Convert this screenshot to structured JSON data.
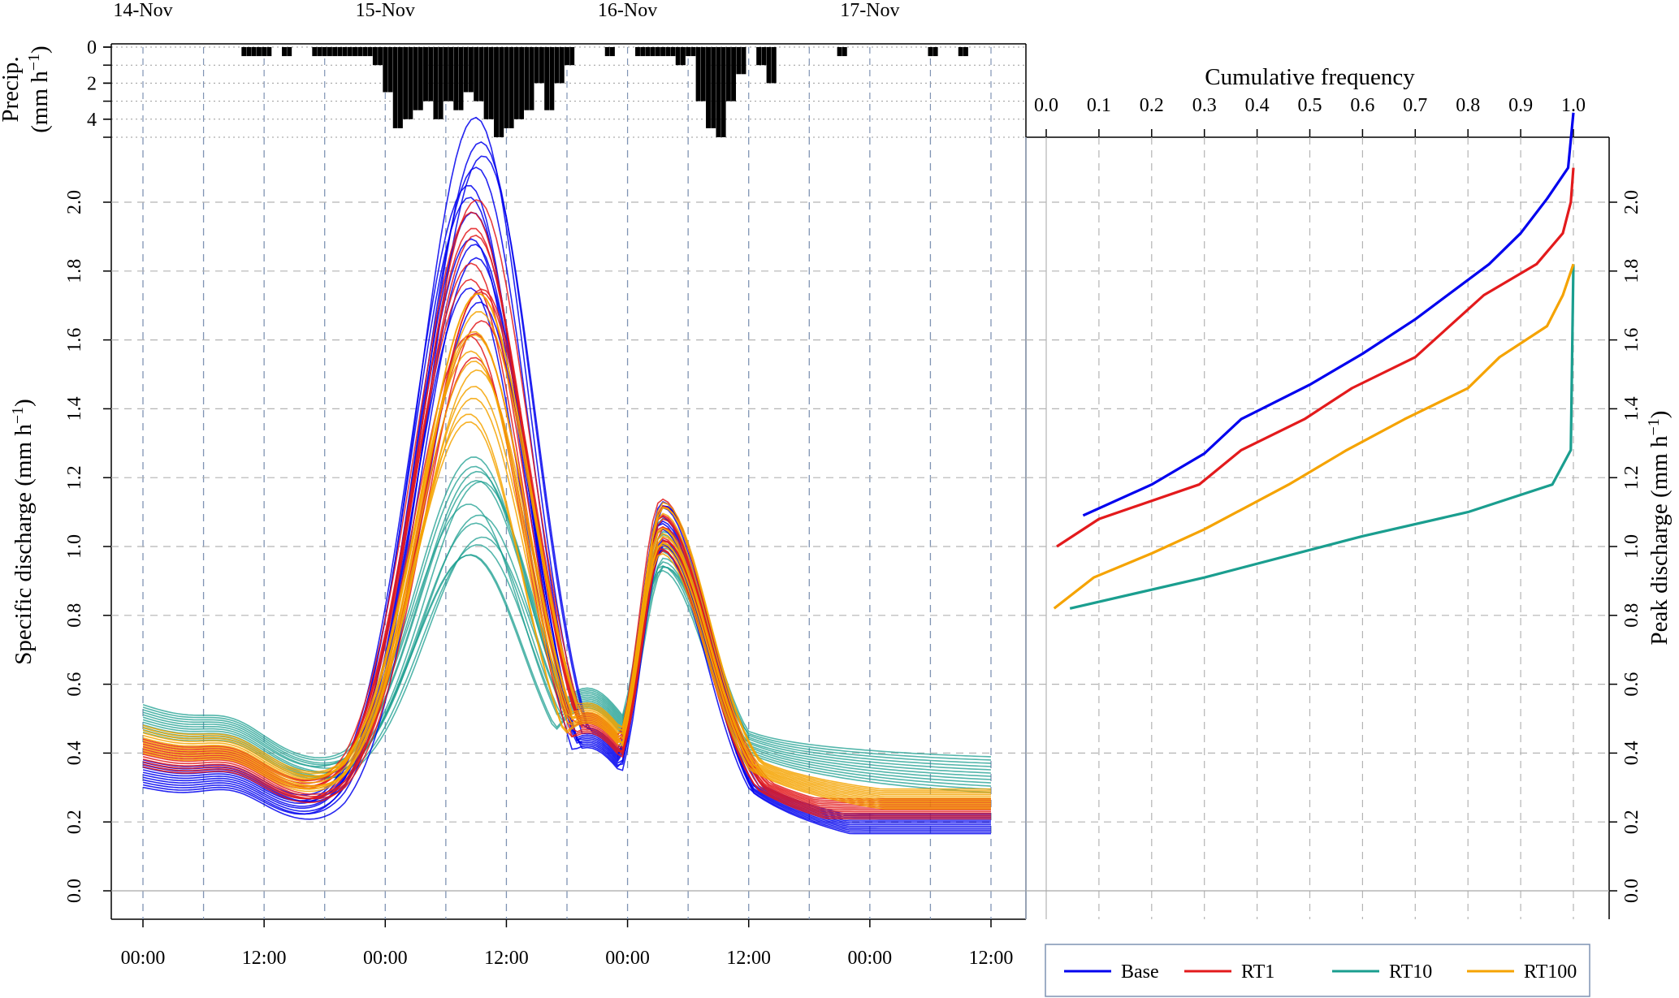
{
  "chart_data": [
    {
      "type": "bar",
      "panel": "precipitation",
      "ylabel_line1": "Precip.",
      "ylabel_line2_prefix": "(mm h",
      "ylabel_line2_sup": "−1",
      "ylabel_line2_suffix": ")",
      "y_reversed": true,
      "ylim": [
        0,
        5
      ],
      "yticks": [
        "0",
        "2",
        "4"
      ],
      "date_labels": [
        "14-Nov",
        "15-Nov",
        "16-Nov",
        "17-Nov"
      ],
      "values": [
        [
          0,
          0
        ],
        [
          0,
          0
        ],
        [
          0,
          0
        ],
        [
          0,
          0
        ],
        [
          0,
          0
        ],
        [
          0,
          0
        ],
        [
          0,
          0
        ],
        [
          0,
          0
        ],
        [
          0,
          0
        ],
        [
          0,
          0
        ],
        [
          0.5,
          0.5
        ],
        [
          0.5,
          0.5
        ],
        [
          0.5,
          0.5
        ],
        [
          0,
          0
        ],
        [
          0.5,
          0.5
        ],
        [
          0,
          0
        ],
        [
          0,
          0
        ],
        [
          0.5,
          0.5
        ],
        [
          0.5,
          0.5
        ],
        [
          0.5,
          0.5
        ],
        [
          0.5,
          0.5
        ],
        [
          0.5,
          0.5
        ],
        [
          0.5,
          0.5
        ],
        [
          1.0,
          1.0
        ],
        [
          2.5,
          2.5
        ],
        [
          4.5,
          4.5
        ],
        [
          4.0,
          4.0
        ],
        [
          3.5,
          3.5
        ],
        [
          3.0,
          3.0
        ],
        [
          4.0,
          4.0
        ],
        [
          3.0,
          3.0
        ],
        [
          3.5,
          3.5
        ],
        [
          2.5,
          2.5
        ],
        [
          3.0,
          3.0
        ],
        [
          4.0,
          4.0
        ],
        [
          5.0,
          5.0
        ],
        [
          4.5,
          4.5
        ],
        [
          4.0,
          4.0
        ],
        [
          3.5,
          3.5
        ],
        [
          2.0,
          2.0
        ],
        [
          3.5,
          3.5
        ],
        [
          2.0,
          2.0
        ],
        [
          1.0,
          1.0
        ],
        [
          0,
          0
        ],
        [
          0,
          0
        ],
        [
          0,
          0
        ],
        [
          0.5,
          0.5
        ],
        [
          0,
          0
        ],
        [
          0,
          0
        ],
        [
          0.5,
          0.5
        ],
        [
          0.5,
          0.5
        ],
        [
          0.5,
          0.5
        ],
        [
          0.5,
          0.5
        ],
        [
          1.0,
          1.0
        ],
        [
          0.5,
          0.5
        ],
        [
          3.0,
          3.0
        ],
        [
          4.5,
          4.5
        ],
        [
          5.0,
          5.0
        ],
        [
          3.0,
          3.0
        ],
        [
          1.5,
          1.5
        ],
        [
          0,
          0
        ],
        [
          1.0,
          1.0
        ],
        [
          2.0,
          2.0
        ],
        [
          0,
          0
        ],
        [
          0,
          0
        ],
        [
          0,
          0
        ],
        [
          0,
          0
        ],
        [
          0,
          0
        ],
        [
          0,
          0
        ],
        [
          0.5,
          0.5
        ],
        [
          0,
          0
        ],
        [
          0,
          0
        ],
        [
          0,
          0
        ],
        [
          0,
          0
        ],
        [
          0,
          0
        ],
        [
          0,
          0
        ],
        [
          0,
          0
        ],
        [
          0,
          0
        ],
        [
          0.5,
          0.5
        ],
        [
          0,
          0
        ],
        [
          0,
          0
        ],
        [
          0.5,
          0.5
        ],
        [
          0,
          0
        ],
        [
          0,
          0
        ],
        [
          0,
          0
        ],
        [
          0,
          0
        ],
        [
          0,
          0
        ],
        [
          0,
          0
        ],
        [
          0,
          0
        ],
        [
          0,
          0
        ]
      ]
    },
    {
      "type": "line",
      "panel": "hydrographs",
      "ylabel": "Specific discharge (mm h",
      "ylabel_sup": "−1",
      "ylabel_suffix": ")",
      "ylim": [
        0,
        2.2
      ],
      "yticks": [
        "0.0",
        "0.2",
        "0.4",
        "0.6",
        "0.8",
        "1.0",
        "1.2",
        "1.4",
        "1.6",
        "1.8",
        "2.0"
      ],
      "xticks": [
        "00:00",
        "12:00",
        "00:00",
        "12:00",
        "00:00",
        "12:00",
        "00:00",
        "12:00"
      ],
      "x_unit": "hours since 14-Nov 00:00",
      "xlim": [
        0,
        84
      ],
      "members_per_scenario": 12,
      "series": [
        {
          "name": "Base",
          "peak1": 1.98,
          "peak2": 1.2,
          "start": 0.34,
          "end": 0.08
        },
        {
          "name": "RT1",
          "peak1": 1.78,
          "peak2": 1.14,
          "start": 0.4,
          "end": 0.11
        },
        {
          "name": "RT10",
          "peak1": 1.12,
          "peak2": 0.98,
          "start": 0.5,
          "end": 0.32
        },
        {
          "name": "RT100",
          "peak1": 1.55,
          "peak2": 1.1,
          "start": 0.44,
          "end": 0.2
        }
      ]
    },
    {
      "type": "line",
      "panel": "cumulative frequency of peak discharge",
      "title": "Cumulative frequency",
      "ylabel": "Peak discharge (mm h",
      "ylabel_sup": "−1",
      "ylabel_suffix": ")",
      "xlim": [
        0,
        1
      ],
      "ylim": [
        0,
        2.2
      ],
      "xticks": [
        "0.0",
        "0.1",
        "0.2",
        "0.3",
        "0.4",
        "0.5",
        "0.6",
        "0.7",
        "0.8",
        "0.9",
        "1.0"
      ],
      "yticks": [
        "0.0",
        "0.2",
        "0.4",
        "0.6",
        "0.8",
        "1.0",
        "1.2",
        "1.4",
        "1.6",
        "1.8",
        "2.0"
      ],
      "series": [
        {
          "name": "Base",
          "x": [
            0.07,
            0.2,
            0.3,
            0.37,
            0.5,
            0.6,
            0.7,
            0.84,
            0.9,
            0.95,
            0.99,
            1.0
          ],
          "y": [
            1.09,
            1.18,
            1.27,
            1.37,
            1.47,
            1.56,
            1.66,
            1.82,
            1.91,
            2.01,
            2.1,
            2.3
          ]
        },
        {
          "name": "RT1",
          "x": [
            0.02,
            0.1,
            0.29,
            0.37,
            0.49,
            0.58,
            0.7,
            0.83,
            0.93,
            0.98,
            0.995,
            1.0
          ],
          "y": [
            1.0,
            1.08,
            1.18,
            1.28,
            1.37,
            1.46,
            1.55,
            1.73,
            1.82,
            1.91,
            2.0,
            2.1
          ]
        },
        {
          "name": "RT10",
          "x": [
            0.045,
            0.3,
            0.6,
            0.8,
            0.96,
            0.995,
            0.997,
            1.0
          ],
          "y": [
            0.82,
            0.91,
            1.03,
            1.1,
            1.18,
            1.28,
            1.5,
            1.82
          ]
        },
        {
          "name": "RT100",
          "x": [
            0.015,
            0.09,
            0.2,
            0.3,
            0.46,
            0.57,
            0.68,
            0.8,
            0.86,
            0.95,
            0.98,
            1.0
          ],
          "y": [
            0.82,
            0.91,
            0.98,
            1.05,
            1.18,
            1.28,
            1.37,
            1.46,
            1.55,
            1.64,
            1.73,
            1.82
          ]
        }
      ]
    }
  ],
  "legend": {
    "items": [
      {
        "name": "Base",
        "color": "#0000ee"
      },
      {
        "name": "RT1",
        "color": "#e31a1c"
      },
      {
        "name": "RT10",
        "color": "#1a9e8f"
      },
      {
        "name": "RT100",
        "color": "#f5a300"
      }
    ]
  }
}
